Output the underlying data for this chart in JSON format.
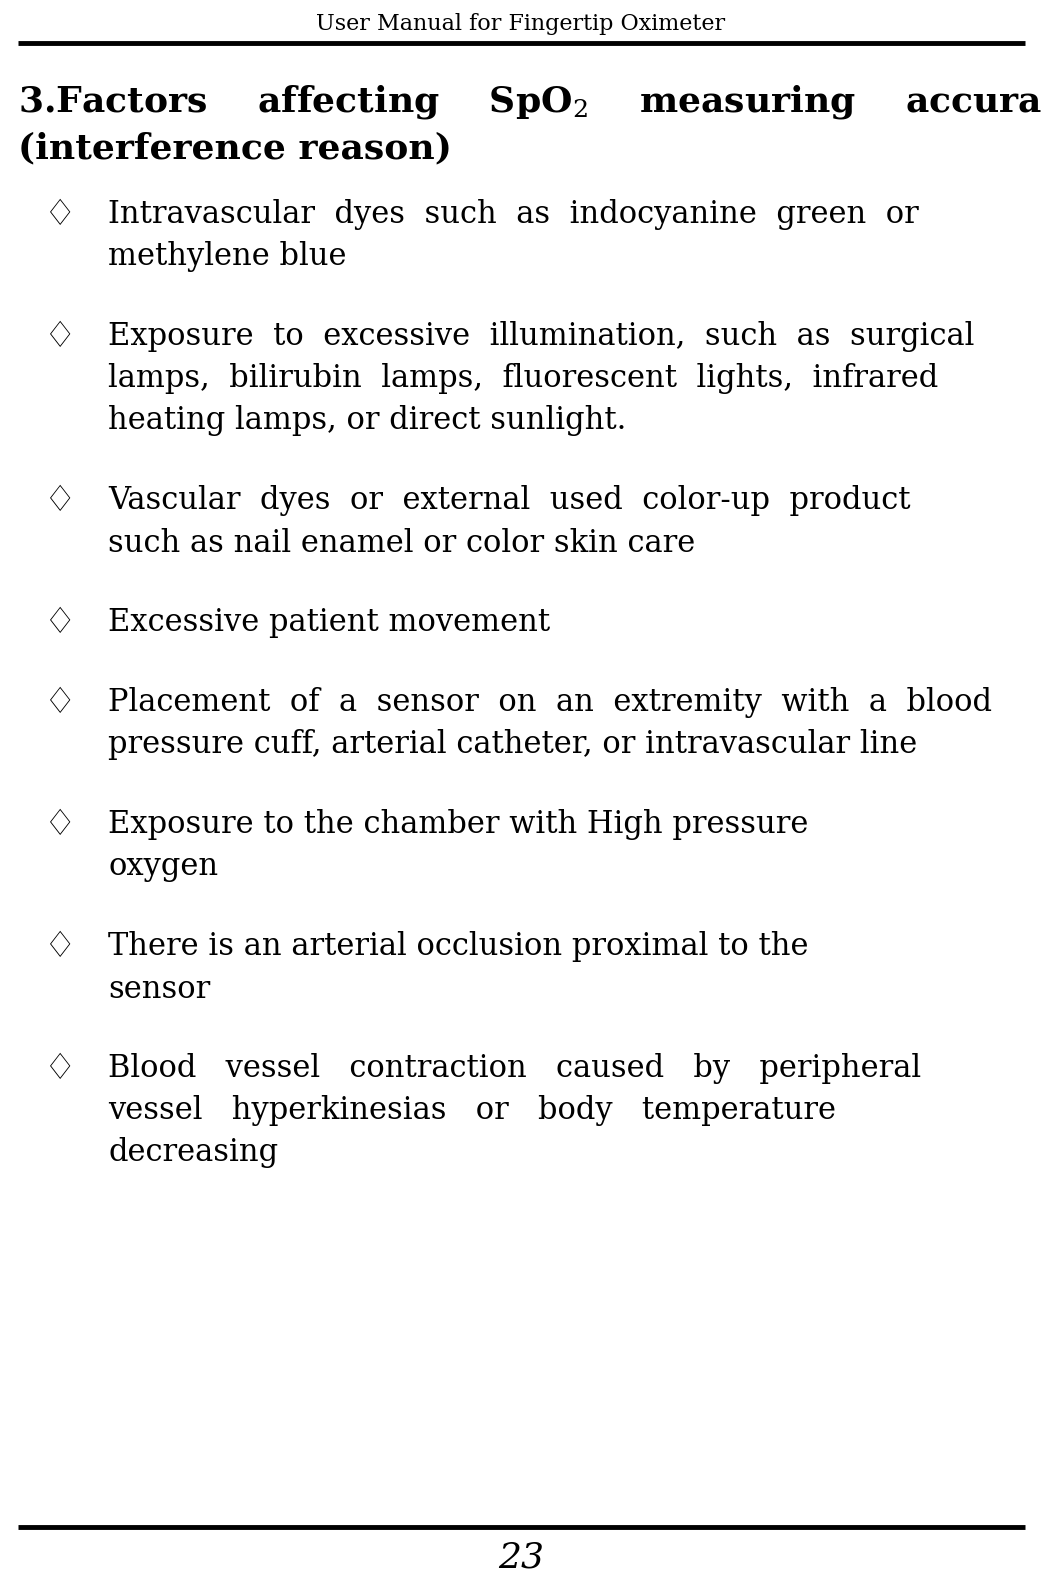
{
  "header_title": "User Manual for Fingertip Oximeter",
  "page_number": "23",
  "bg_color": "#ffffff",
  "text_color": "#000000",
  "header_font_size": 16,
  "section_font_size": 26,
  "bullet_font_size": 22,
  "page_num_font_size": 26,
  "bullet_symbol": "♢",
  "bullet_items": [
    [
      "Intravascular  dyes  such  as  indocyanine  green  or",
      "methylene blue"
    ],
    [
      "Exposure  to  excessive  illumination,  such  as  surgical",
      "lamps,  bilirubin  lamps,  fluorescent  lights,  infrared",
      "heating lamps, or direct sunlight."
    ],
    [
      "Vascular  dyes  or  external  used  color-up  product",
      "such as nail enamel or color skin care"
    ],
    [
      "Excessive patient movement"
    ],
    [
      "Placement  of  a  sensor  on  an  extremity  with  a  blood",
      "pressure cuff, arterial catheter, or intravascular line"
    ],
    [
      "Exposure to the chamber with High pressure",
      "oxygen"
    ],
    [
      "There is an arterial occlusion proximal to the",
      "sensor"
    ],
    [
      "Blood   vessel   contraction   caused   by   peripheral",
      "vessel   hyperkinesias   or   body   temperature",
      "decreasing"
    ]
  ]
}
